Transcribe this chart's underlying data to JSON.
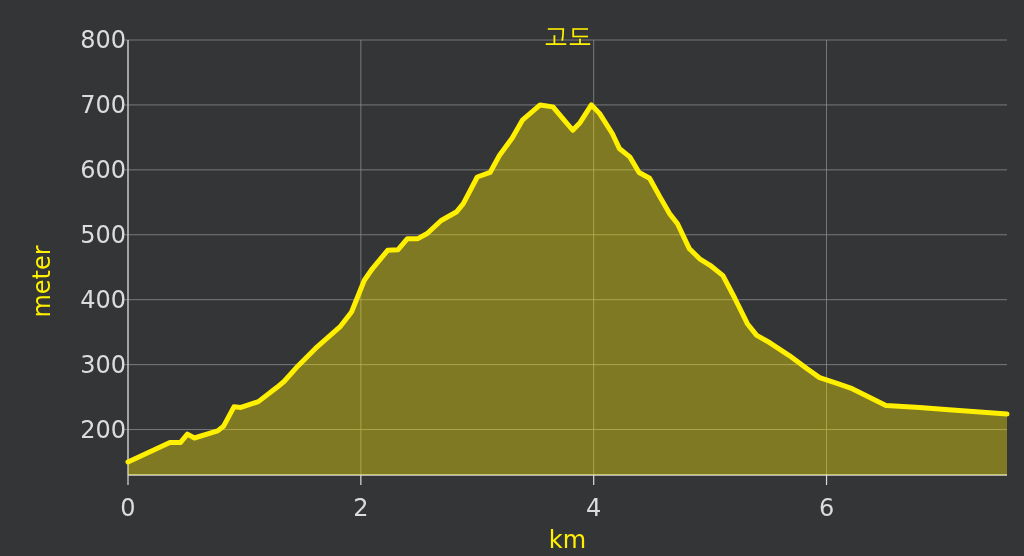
{
  "chart_data": {
    "type": "area",
    "title": "고도",
    "xlabel": "km",
    "ylabel": "meter",
    "x": [
      0,
      0.36,
      0.45,
      0.51,
      0.57,
      0.77,
      0.82,
      0.91,
      0.97,
      1.12,
      1.28,
      1.34,
      1.46,
      1.61,
      1.82,
      1.92,
      2.03,
      2.1,
      2.23,
      2.32,
      2.4,
      2.49,
      2.57,
      2.69,
      2.82,
      2.88,
      3.0,
      3.11,
      3.19,
      3.3,
      3.39,
      3.54,
      3.65,
      3.73,
      3.82,
      3.88,
      3.98,
      4.05,
      4.16,
      4.22,
      4.31,
      4.39,
      4.48,
      4.57,
      4.65,
      4.72,
      4.82,
      4.91,
      5.0,
      5.11,
      5.21,
      5.32,
      5.4,
      5.51,
      5.68,
      5.83,
      5.94,
      6.09,
      6.22,
      6.51,
      6.8,
      7.08,
      7.55
    ],
    "series": [
      {
        "color": "#fff000",
        "values": [
          150,
          180,
          180,
          193,
          187,
          198,
          205,
          235,
          234,
          243,
          265,
          274,
          298,
          325,
          358,
          381,
          430,
          448,
          476,
          477,
          494,
          494,
          502,
          522,
          535,
          548,
          589,
          596,
          622,
          649,
          677,
          700,
          697,
          680,
          661,
          672,
          700,
          687,
          656,
          633,
          620,
          596,
          587,
          558,
          533,
          517,
          479,
          463,
          453,
          437,
          403,
          363,
          345,
          334,
          314,
          294,
          280,
          271,
          263,
          237,
          234,
          230,
          224
        ]
      }
    ],
    "xlim": [
      0,
      7.55
    ],
    "ylim": [
      130,
      800
    ],
    "xticks": [
      0,
      2,
      4,
      6
    ],
    "yticks": [
      200,
      300,
      400,
      500,
      600,
      700,
      800
    ],
    "grid": true
  }
}
